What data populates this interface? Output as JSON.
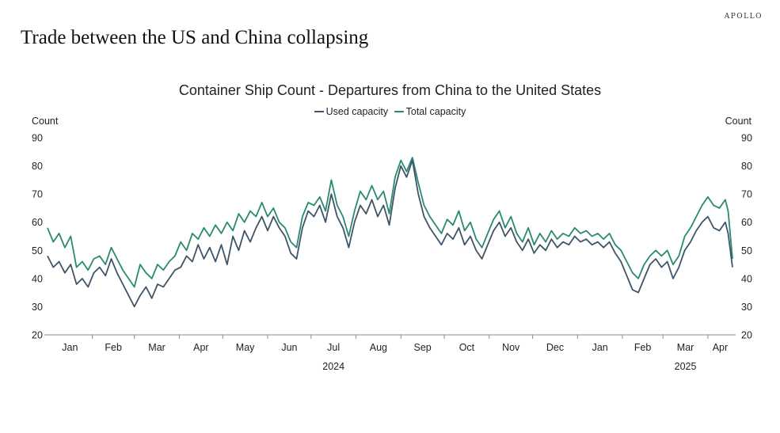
{
  "brand": "APOLLO",
  "headline": "Trade between the US and China collapsing",
  "chart_data": {
    "type": "line",
    "title": "Container Ship Count - Departures from China to the United States",
    "ylabel_left": "Count",
    "ylabel_right": "Count",
    "ylim": [
      20,
      90
    ],
    "yticks": [
      20,
      30,
      40,
      50,
      60,
      70,
      80,
      90
    ],
    "x_month_labels": [
      "Jan",
      "Feb",
      "Mar",
      "Apr",
      "May",
      "Jun",
      "Jul",
      "Aug",
      "Sep",
      "Oct",
      "Nov",
      "Dec",
      "Jan",
      "Feb",
      "Mar",
      "Apr"
    ],
    "x_year_labels": [
      {
        "label": "2024",
        "month_index": 6
      },
      {
        "label": "2025",
        "month_index": 14
      }
    ],
    "x_start": "2024-01-01",
    "x_end": "2025-04-18",
    "grid": false,
    "legend_placement": "top-center",
    "series": [
      {
        "name": "Used capacity",
        "color": "#3e5468",
        "points": [
          [
            "2024-01-01",
            48
          ],
          [
            "2024-01-05",
            44
          ],
          [
            "2024-01-09",
            46
          ],
          [
            "2024-01-13",
            42
          ],
          [
            "2024-01-17",
            45
          ],
          [
            "2024-01-21",
            38
          ],
          [
            "2024-01-25",
            40
          ],
          [
            "2024-01-29",
            37
          ],
          [
            "2024-02-02",
            42
          ],
          [
            "2024-02-06",
            44
          ],
          [
            "2024-02-10",
            41
          ],
          [
            "2024-02-14",
            47
          ],
          [
            "2024-02-18",
            42
          ],
          [
            "2024-02-22",
            38
          ],
          [
            "2024-02-26",
            34
          ],
          [
            "2024-03-01",
            30
          ],
          [
            "2024-03-05",
            34
          ],
          [
            "2024-03-09",
            37
          ],
          [
            "2024-03-13",
            33
          ],
          [
            "2024-03-17",
            38
          ],
          [
            "2024-03-21",
            37
          ],
          [
            "2024-03-25",
            40
          ],
          [
            "2024-03-29",
            43
          ],
          [
            "2024-04-02",
            44
          ],
          [
            "2024-04-06",
            48
          ],
          [
            "2024-04-10",
            46
          ],
          [
            "2024-04-14",
            52
          ],
          [
            "2024-04-18",
            47
          ],
          [
            "2024-04-22",
            51
          ],
          [
            "2024-04-26",
            46
          ],
          [
            "2024-04-30",
            52
          ],
          [
            "2024-05-04",
            45
          ],
          [
            "2024-05-08",
            55
          ],
          [
            "2024-05-12",
            50
          ],
          [
            "2024-05-16",
            57
          ],
          [
            "2024-05-20",
            53
          ],
          [
            "2024-05-24",
            58
          ],
          [
            "2024-05-28",
            62
          ],
          [
            "2024-06-01",
            57
          ],
          [
            "2024-06-05",
            62
          ],
          [
            "2024-06-09",
            58
          ],
          [
            "2024-06-13",
            55
          ],
          [
            "2024-06-17",
            49
          ],
          [
            "2024-06-21",
            47
          ],
          [
            "2024-06-25",
            58
          ],
          [
            "2024-06-29",
            64
          ],
          [
            "2024-07-03",
            62
          ],
          [
            "2024-07-07",
            66
          ],
          [
            "2024-07-11",
            60
          ],
          [
            "2024-07-15",
            70
          ],
          [
            "2024-07-19",
            62
          ],
          [
            "2024-07-23",
            58
          ],
          [
            "2024-07-27",
            51
          ],
          [
            "2024-07-31",
            60
          ],
          [
            "2024-08-04",
            66
          ],
          [
            "2024-08-08",
            63
          ],
          [
            "2024-08-12",
            68
          ],
          [
            "2024-08-16",
            62
          ],
          [
            "2024-08-20",
            66
          ],
          [
            "2024-08-24",
            59
          ],
          [
            "2024-08-28",
            72
          ],
          [
            "2024-09-01",
            80
          ],
          [
            "2024-09-05",
            76
          ],
          [
            "2024-09-09",
            82
          ],
          [
            "2024-09-13",
            70
          ],
          [
            "2024-09-17",
            62
          ],
          [
            "2024-09-21",
            58
          ],
          [
            "2024-09-25",
            55
          ],
          [
            "2024-09-29",
            52
          ],
          [
            "2024-10-03",
            56
          ],
          [
            "2024-10-07",
            54
          ],
          [
            "2024-10-11",
            58
          ],
          [
            "2024-10-15",
            52
          ],
          [
            "2024-10-19",
            55
          ],
          [
            "2024-10-23",
            50
          ],
          [
            "2024-10-27",
            47
          ],
          [
            "2024-10-31",
            52
          ],
          [
            "2024-11-04",
            57
          ],
          [
            "2024-11-08",
            60
          ],
          [
            "2024-11-12",
            55
          ],
          [
            "2024-11-16",
            58
          ],
          [
            "2024-11-20",
            53
          ],
          [
            "2024-11-24",
            50
          ],
          [
            "2024-11-28",
            54
          ],
          [
            "2024-12-02",
            49
          ],
          [
            "2024-12-06",
            52
          ],
          [
            "2024-12-10",
            50
          ],
          [
            "2024-12-14",
            54
          ],
          [
            "2024-12-18",
            51
          ],
          [
            "2024-12-22",
            53
          ],
          [
            "2024-12-26",
            52
          ],
          [
            "2024-12-30",
            55
          ],
          [
            "2025-01-03",
            53
          ],
          [
            "2025-01-07",
            54
          ],
          [
            "2025-01-11",
            52
          ],
          [
            "2025-01-15",
            53
          ],
          [
            "2025-01-19",
            51
          ],
          [
            "2025-01-23",
            53
          ],
          [
            "2025-01-27",
            49
          ],
          [
            "2025-01-31",
            46
          ],
          [
            "2025-02-04",
            41
          ],
          [
            "2025-02-08",
            36
          ],
          [
            "2025-02-12",
            35
          ],
          [
            "2025-02-16",
            40
          ],
          [
            "2025-02-20",
            45
          ],
          [
            "2025-02-24",
            47
          ],
          [
            "2025-02-28",
            44
          ],
          [
            "2025-03-04",
            46
          ],
          [
            "2025-03-08",
            40
          ],
          [
            "2025-03-12",
            44
          ],
          [
            "2025-03-16",
            50
          ],
          [
            "2025-03-20",
            53
          ],
          [
            "2025-03-24",
            57
          ],
          [
            "2025-03-28",
            60
          ],
          [
            "2025-04-01",
            62
          ],
          [
            "2025-04-05",
            58
          ],
          [
            "2025-04-09",
            57
          ],
          [
            "2025-04-13",
            60
          ],
          [
            "2025-04-15",
            56
          ],
          [
            "2025-04-18",
            44
          ]
        ]
      },
      {
        "name": "Total capacity",
        "color": "#2a8a6f",
        "points": [
          [
            "2024-01-01",
            58
          ],
          [
            "2024-01-05",
            53
          ],
          [
            "2024-01-09",
            56
          ],
          [
            "2024-01-13",
            51
          ],
          [
            "2024-01-17",
            55
          ],
          [
            "2024-01-21",
            44
          ],
          [
            "2024-01-25",
            46
          ],
          [
            "2024-01-29",
            43
          ],
          [
            "2024-02-02",
            47
          ],
          [
            "2024-02-06",
            48
          ],
          [
            "2024-02-10",
            45
          ],
          [
            "2024-02-14",
            51
          ],
          [
            "2024-02-18",
            47
          ],
          [
            "2024-02-22",
            43
          ],
          [
            "2024-02-26",
            40
          ],
          [
            "2024-03-01",
            37
          ],
          [
            "2024-03-05",
            45
          ],
          [
            "2024-03-09",
            42
          ],
          [
            "2024-03-13",
            40
          ],
          [
            "2024-03-17",
            45
          ],
          [
            "2024-03-21",
            43
          ],
          [
            "2024-03-25",
            46
          ],
          [
            "2024-03-29",
            48
          ],
          [
            "2024-04-02",
            53
          ],
          [
            "2024-04-06",
            50
          ],
          [
            "2024-04-10",
            56
          ],
          [
            "2024-04-14",
            54
          ],
          [
            "2024-04-18",
            58
          ],
          [
            "2024-04-22",
            55
          ],
          [
            "2024-04-26",
            59
          ],
          [
            "2024-04-30",
            56
          ],
          [
            "2024-05-04",
            60
          ],
          [
            "2024-05-08",
            57
          ],
          [
            "2024-05-12",
            63
          ],
          [
            "2024-05-16",
            60
          ],
          [
            "2024-05-20",
            64
          ],
          [
            "2024-05-24",
            62
          ],
          [
            "2024-05-28",
            67
          ],
          [
            "2024-06-01",
            62
          ],
          [
            "2024-06-05",
            65
          ],
          [
            "2024-06-09",
            60
          ],
          [
            "2024-06-13",
            58
          ],
          [
            "2024-06-17",
            53
          ],
          [
            "2024-06-21",
            51
          ],
          [
            "2024-06-25",
            62
          ],
          [
            "2024-06-29",
            67
          ],
          [
            "2024-07-03",
            66
          ],
          [
            "2024-07-07",
            69
          ],
          [
            "2024-07-11",
            64
          ],
          [
            "2024-07-15",
            75
          ],
          [
            "2024-07-19",
            66
          ],
          [
            "2024-07-23",
            62
          ],
          [
            "2024-07-27",
            55
          ],
          [
            "2024-07-31",
            64
          ],
          [
            "2024-08-04",
            71
          ],
          [
            "2024-08-08",
            68
          ],
          [
            "2024-08-12",
            73
          ],
          [
            "2024-08-16",
            68
          ],
          [
            "2024-08-20",
            71
          ],
          [
            "2024-08-24",
            63
          ],
          [
            "2024-08-28",
            76
          ],
          [
            "2024-09-01",
            82
          ],
          [
            "2024-09-05",
            78
          ],
          [
            "2024-09-09",
            83
          ],
          [
            "2024-09-13",
            74
          ],
          [
            "2024-09-17",
            66
          ],
          [
            "2024-09-21",
            62
          ],
          [
            "2024-09-25",
            59
          ],
          [
            "2024-09-29",
            56
          ],
          [
            "2024-10-03",
            61
          ],
          [
            "2024-10-07",
            59
          ],
          [
            "2024-10-11",
            64
          ],
          [
            "2024-10-15",
            57
          ],
          [
            "2024-10-19",
            60
          ],
          [
            "2024-10-23",
            54
          ],
          [
            "2024-10-27",
            51
          ],
          [
            "2024-10-31",
            56
          ],
          [
            "2024-11-04",
            61
          ],
          [
            "2024-11-08",
            64
          ],
          [
            "2024-11-12",
            58
          ],
          [
            "2024-11-16",
            62
          ],
          [
            "2024-11-20",
            56
          ],
          [
            "2024-11-24",
            53
          ],
          [
            "2024-11-28",
            58
          ],
          [
            "2024-12-02",
            52
          ],
          [
            "2024-12-06",
            56
          ],
          [
            "2024-12-10",
            53
          ],
          [
            "2024-12-14",
            57
          ],
          [
            "2024-12-18",
            54
          ],
          [
            "2024-12-22",
            56
          ],
          [
            "2024-12-26",
            55
          ],
          [
            "2024-12-30",
            58
          ],
          [
            "2025-01-03",
            56
          ],
          [
            "2025-01-07",
            57
          ],
          [
            "2025-01-11",
            55
          ],
          [
            "2025-01-15",
            56
          ],
          [
            "2025-01-19",
            54
          ],
          [
            "2025-01-23",
            56
          ],
          [
            "2025-01-27",
            52
          ],
          [
            "2025-01-31",
            50
          ],
          [
            "2025-02-04",
            46
          ],
          [
            "2025-02-08",
            42
          ],
          [
            "2025-02-12",
            40
          ],
          [
            "2025-02-16",
            45
          ],
          [
            "2025-02-20",
            48
          ],
          [
            "2025-02-24",
            50
          ],
          [
            "2025-02-28",
            48
          ],
          [
            "2025-03-04",
            50
          ],
          [
            "2025-03-08",
            45
          ],
          [
            "2025-03-12",
            48
          ],
          [
            "2025-03-16",
            55
          ],
          [
            "2025-03-20",
            58
          ],
          [
            "2025-03-24",
            62
          ],
          [
            "2025-03-28",
            66
          ],
          [
            "2025-04-01",
            69
          ],
          [
            "2025-04-05",
            66
          ],
          [
            "2025-04-09",
            65
          ],
          [
            "2025-04-13",
            68
          ],
          [
            "2025-04-15",
            64
          ],
          [
            "2025-04-18",
            47
          ]
        ]
      }
    ]
  }
}
